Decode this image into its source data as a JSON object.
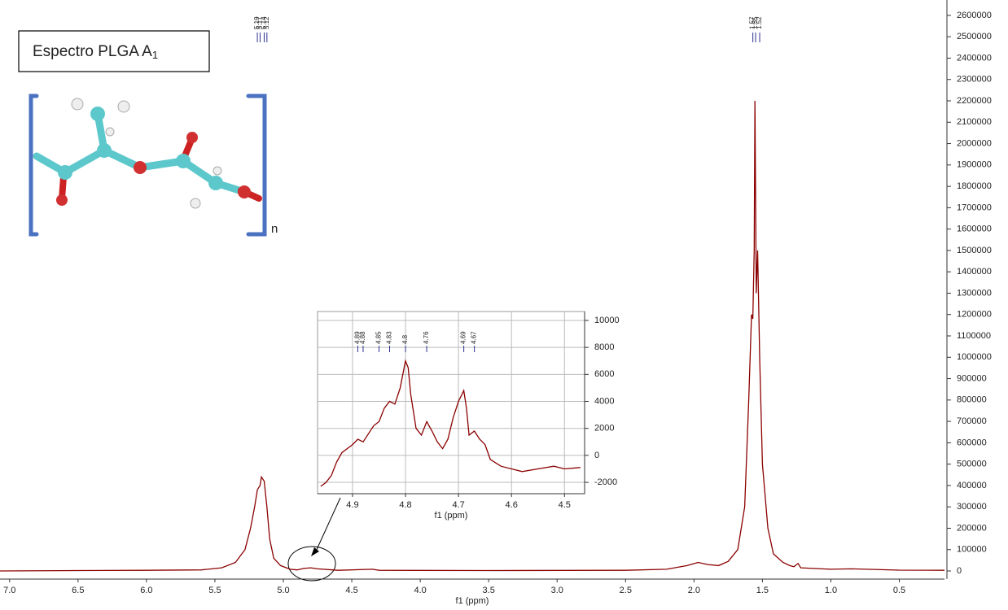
{
  "chart_data": [
    {
      "type": "line",
      "title": "Espectro PLGA A",
      "title_subscript": "1",
      "structure_label": "n",
      "x_label": "f1 (ppm)",
      "xlim": [
        7.07,
        0.17
      ],
      "ylim": [
        -38000,
        2672000
      ],
      "xticks": [
        {
          "value": 7,
          "label": "7.0"
        },
        6.5,
        {
          "value": 6,
          "label": "6.0"
        },
        5.5,
        {
          "value": 5,
          "label": "5.0"
        },
        4.5,
        {
          "value": 4,
          "label": "4.0"
        },
        3.5,
        {
          "value": 3,
          "label": "3.0"
        },
        2.5,
        {
          "value": 2,
          "label": "2.0"
        },
        1.5,
        {
          "value": 1,
          "label": "1.0"
        },
        0.5
      ],
      "yticks": [
        0,
        100000,
        200000,
        300000,
        400000,
        500000,
        600000,
        700000,
        800000,
        900000,
        1000000,
        1100000,
        1200000,
        1300000,
        1400000,
        1500000,
        1600000,
        1700000,
        1800000,
        1900000,
        2000000,
        2100000,
        2200000,
        2300000,
        2400000,
        2500000,
        2600000
      ],
      "peak_labels": [
        5.19,
        5.17,
        5.14,
        5.12,
        1.57,
        1.55,
        1.52
      ],
      "peak_label_color": "#2e3192",
      "series": [
        {
          "color": "#8b0000",
          "x": [
            7.07,
            6.5,
            6.0,
            5.6,
            5.45,
            5.35,
            5.28,
            5.24,
            5.21,
            5.19,
            5.17,
            5.16,
            5.14,
            5.12,
            5.1,
            5.07,
            5.02,
            4.95,
            4.9,
            4.85,
            4.8,
            4.75,
            4.6,
            4.35,
            4.3,
            3.5,
            2.5,
            2.2,
            2.05,
            1.97,
            1.9,
            1.82,
            1.75,
            1.68,
            1.63,
            1.6,
            1.58,
            1.57,
            1.56,
            1.555,
            1.545,
            1.535,
            1.52,
            1.5,
            1.46,
            1.42,
            1.35,
            1.3,
            1.27,
            1.24,
            1.22,
            1.0,
            0.85,
            0.5,
            0.17
          ],
          "values": [
            0,
            2000,
            3000,
            5000,
            15000,
            40000,
            100000,
            200000,
            300000,
            380000,
            400000,
            440000,
            420000,
            300000,
            150000,
            60000,
            25000,
            8000,
            5000,
            12000,
            15000,
            10000,
            3000,
            8000,
            3000,
            2000,
            3000,
            8000,
            25000,
            40000,
            30000,
            25000,
            45000,
            100000,
            300000,
            800000,
            1200000,
            1180000,
            1500000,
            2200000,
            1300000,
            1500000,
            1000000,
            500000,
            200000,
            80000,
            40000,
            25000,
            20000,
            35000,
            15000,
            8000,
            10000,
            4000,
            3000
          ]
        }
      ]
    },
    {
      "type": "line",
      "x_label": "f1 (ppm)",
      "grid": true,
      "xlim": [
        4.966,
        4.462
      ],
      "ylim": [
        -2840,
        10660
      ],
      "xticks": [
        4.9,
        4.8,
        4.7,
        4.6,
        4.5
      ],
      "yticks": [
        -2000,
        0,
        2000,
        4000,
        6000,
        8000,
        10000
      ],
      "peak_labels": [
        4.89,
        4.88,
        4.85,
        4.83,
        4.8,
        4.76,
        4.69,
        4.67
      ],
      "peak_label_color": "#2e3192",
      "series": [
        {
          "color": "#8b0000",
          "x": [
            4.96,
            4.95,
            4.94,
            4.93,
            4.92,
            4.91,
            4.9,
            4.89,
            4.88,
            4.87,
            4.86,
            4.85,
            4.84,
            4.83,
            4.82,
            4.81,
            4.8,
            4.795,
            4.79,
            4.78,
            4.77,
            4.76,
            4.75,
            4.74,
            4.73,
            4.72,
            4.71,
            4.7,
            4.69,
            4.685,
            4.68,
            4.67,
            4.66,
            4.65,
            4.64,
            4.62,
            4.6,
            4.58,
            4.55,
            4.52,
            4.5,
            4.47
          ],
          "values": [
            -2300,
            -2000,
            -1500,
            -500,
            200,
            500,
            800,
            1200,
            1000,
            1600,
            2200,
            2500,
            3500,
            4000,
            3800,
            5000,
            7000,
            6500,
            4500,
            2000,
            1500,
            2500,
            1800,
            1000,
            500,
            1200,
            2800,
            4000,
            4800,
            3500,
            1500,
            1800,
            1200,
            800,
            -300,
            -800,
            -1000,
            -1200,
            -1000,
            -800,
            -1000,
            -900
          ]
        }
      ]
    }
  ]
}
